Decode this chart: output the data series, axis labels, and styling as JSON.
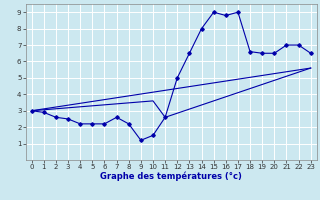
{
  "xlabel": "Graphe des températures (°c)",
  "bg_color": "#cce8f0",
  "grid_color": "#ffffff",
  "line_color": "#0000aa",
  "xlim": [
    -0.5,
    23.5
  ],
  "ylim": [
    0,
    9.5
  ],
  "xticks": [
    0,
    1,
    2,
    3,
    4,
    5,
    6,
    7,
    8,
    9,
    10,
    11,
    12,
    13,
    14,
    15,
    16,
    17,
    18,
    19,
    20,
    21,
    22,
    23
  ],
  "yticks": [
    1,
    2,
    3,
    4,
    5,
    6,
    7,
    8,
    9
  ],
  "line1_x": [
    0,
    1,
    2,
    3,
    4,
    5,
    6,
    7,
    8,
    9,
    10,
    11,
    12,
    13,
    14,
    15,
    16,
    17,
    18,
    19,
    20,
    21,
    22,
    23
  ],
  "line1_y": [
    3.0,
    2.9,
    2.6,
    2.5,
    2.2,
    2.2,
    2.2,
    2.6,
    2.2,
    1.2,
    1.5,
    2.6,
    5.0,
    6.5,
    8.0,
    9.0,
    8.8,
    9.0,
    6.6,
    6.5,
    6.5,
    7.0,
    7.0,
    6.5
  ],
  "line2_x": [
    0,
    23
  ],
  "line2_y": [
    3.0,
    5.6
  ],
  "line3_x": [
    0,
    10,
    11,
    23
  ],
  "line3_y": [
    3.0,
    3.6,
    2.6,
    5.6
  ],
  "xlabel_fontsize": 6.0,
  "tick_fontsize": 5.0
}
